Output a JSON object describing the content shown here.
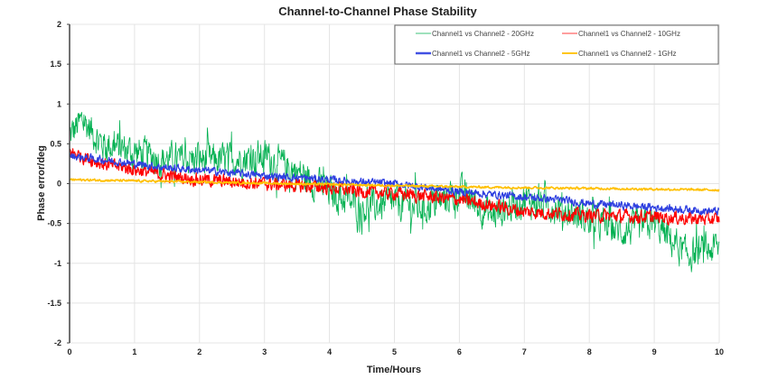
{
  "chart_data": {
    "type": "line",
    "title": "Channel-to-Channel Phase Stability",
    "xlabel": "Time/Hours",
    "ylabel": "Phase error/deg",
    "xlim": [
      0,
      10
    ],
    "ylim": [
      -2,
      2
    ],
    "xticks": [
      "0",
      "1",
      "2",
      "3",
      "4",
      "5",
      "6",
      "7",
      "8",
      "9",
      "10"
    ],
    "yticks": [
      "2",
      "1.5",
      "1",
      "0.5",
      "0",
      "-0.5",
      "-1",
      "-1.5",
      "-2"
    ],
    "grid": true,
    "legend": "top-right",
    "series": [
      {
        "name": "Channel1 vs Channel2 - 20GHz",
        "color": "#00b050",
        "x": [
          0,
          0.2,
          0.5,
          1,
          1.5,
          2,
          2.5,
          3,
          3.5,
          4,
          4.5,
          5,
          5.5,
          6,
          6.5,
          7,
          7.5,
          8,
          8.5,
          9,
          9.5,
          10
        ],
        "y": [
          0.6,
          0.8,
          0.5,
          0.4,
          0.3,
          0.3,
          0.3,
          0.35,
          0.15,
          -0.1,
          -0.3,
          -0.25,
          -0.3,
          -0.1,
          -0.4,
          -0.2,
          -0.3,
          -0.45,
          -0.6,
          -0.5,
          -0.9,
          -0.8
        ],
        "noise_amplitude": 0.3
      },
      {
        "name": "Channel1 vs Channel2 - 10GHz",
        "color": "#ff0000",
        "x": [
          0,
          0.5,
          1,
          1.5,
          2,
          3,
          4,
          4.5,
          5,
          6,
          7,
          8,
          9,
          10
        ],
        "y": [
          0.4,
          0.25,
          0.18,
          0.1,
          0.05,
          0,
          -0.05,
          -0.1,
          -0.12,
          -0.2,
          -0.35,
          -0.4,
          -0.42,
          -0.45
        ],
        "noise_amplitude": 0.12
      },
      {
        "name": "Channel1 vs Channel2 - 5GHz",
        "color": "#2e3fe0",
        "x": [
          0,
          0.5,
          1,
          1.5,
          2,
          3,
          4,
          4.5,
          5,
          6,
          7,
          7.5,
          8,
          9,
          10
        ],
        "y": [
          0.35,
          0.3,
          0.25,
          0.2,
          0.17,
          0.1,
          0.05,
          0.02,
          0,
          -0.1,
          -0.17,
          -0.2,
          -0.25,
          -0.3,
          -0.35
        ],
        "noise_amplitude": 0.07
      },
      {
        "name": "Channel1 vs Channel2 - 1GHz",
        "color": "#ffc000",
        "x": [
          0,
          2,
          4,
          6,
          8,
          10
        ],
        "y": [
          0.05,
          0.02,
          -0.01,
          -0.04,
          -0.06,
          -0.08
        ],
        "noise_amplitude": 0.02
      }
    ]
  }
}
